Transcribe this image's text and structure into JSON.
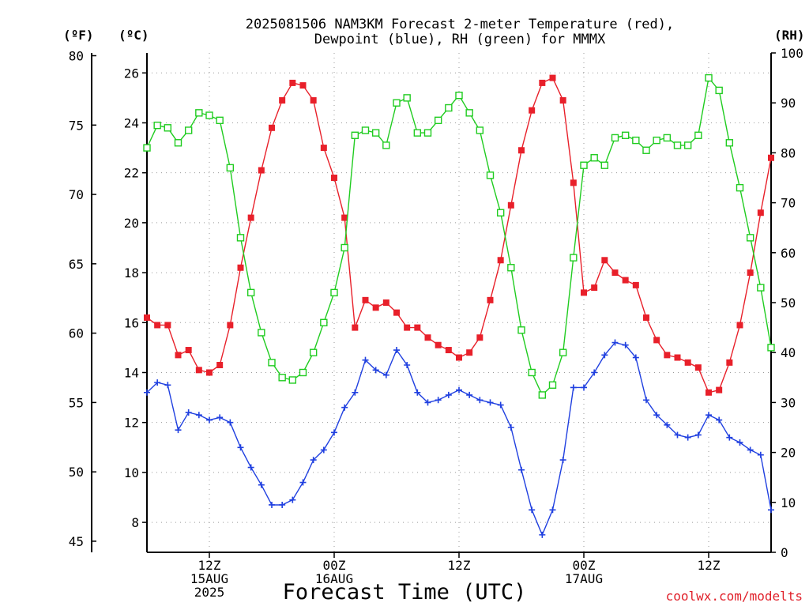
{
  "chart_data": {
    "type": "line",
    "title": [
      "2025081506 NAM3KM Forecast 2-meter Temperature (red),",
      "Dewpoint (blue), RH (green) for MMMX"
    ],
    "xlabel": "Forecast Time (UTC)",
    "credit": "coolwx.com/modelts",
    "units": {
      "fahrenheit": "(ºF)",
      "celsius": "(ºC)",
      "rh": "(RH)"
    },
    "x_range_hours": [
      0,
      60
    ],
    "x_ticks": [
      {
        "hour": 6,
        "labels": [
          "12Z",
          "15AUG",
          "2025"
        ]
      },
      {
        "hour": 18,
        "labels": [
          "00Z",
          "16AUG"
        ]
      },
      {
        "hour": 30,
        "labels": [
          "12Z"
        ]
      },
      {
        "hour": 42,
        "labels": [
          "00Z",
          "17AUG"
        ]
      },
      {
        "hour": 54,
        "labels": [
          "12Z"
        ]
      }
    ],
    "left_celsius_axis": {
      "range": [
        6.8,
        26.8
      ],
      "ticks": [
        8,
        10,
        12,
        14,
        16,
        18,
        20,
        22,
        24,
        26
      ]
    },
    "left_fahrenheit_axis": {
      "range": [
        44.2,
        80.2
      ],
      "ticks": [
        45,
        50,
        55,
        60,
        65,
        70,
        75,
        80
      ]
    },
    "right_rh_axis": {
      "range": [
        0,
        100
      ],
      "ticks": [
        0,
        10,
        20,
        30,
        40,
        50,
        60,
        70,
        80,
        90,
        100
      ]
    },
    "grid": true,
    "series": [
      {
        "name": "Temperature",
        "axis": "celsius",
        "color": "#e8202a",
        "marker": "filled-square",
        "x": [
          0,
          1,
          2,
          3,
          4,
          5,
          6,
          7,
          8,
          9,
          10,
          11,
          12,
          13,
          14,
          15,
          16,
          17,
          18,
          19,
          20,
          21,
          22,
          23,
          24,
          25,
          26,
          27,
          28,
          29,
          30,
          31,
          32,
          33,
          34,
          35,
          36,
          37,
          38,
          39,
          40,
          41,
          42,
          43,
          44,
          45,
          46,
          47,
          48,
          49,
          50,
          51,
          52,
          53,
          54,
          55,
          56,
          57,
          58,
          59,
          60
        ],
        "values": [
          16.2,
          15.9,
          15.9,
          14.7,
          14.9,
          14.1,
          14.0,
          14.3,
          15.9,
          18.2,
          20.2,
          22.1,
          23.8,
          24.9,
          25.6,
          25.5,
          24.9,
          23.0,
          21.8,
          20.2,
          15.8,
          16.9,
          16.6,
          16.8,
          16.4,
          15.8,
          15.8,
          15.4,
          15.1,
          14.9,
          14.6,
          14.8,
          15.4,
          16.9,
          18.5,
          20.7,
          22.9,
          24.5,
          25.6,
          25.8,
          24.9,
          21.6,
          17.2,
          17.4,
          18.5,
          18.0,
          17.7,
          17.5,
          16.2,
          15.3,
          14.7,
          14.6,
          14.4,
          14.2,
          13.2,
          13.3,
          14.4,
          15.9,
          18.0,
          20.4,
          22.6
        ]
      },
      {
        "name": "Dewpoint",
        "axis": "celsius",
        "color": "#2040e0",
        "marker": "plus",
        "x": [
          0,
          1,
          2,
          3,
          4,
          5,
          6,
          7,
          8,
          9,
          10,
          11,
          12,
          13,
          14,
          15,
          16,
          17,
          18,
          19,
          20,
          21,
          22,
          23,
          24,
          25,
          26,
          27,
          28,
          29,
          30,
          31,
          32,
          33,
          34,
          35,
          36,
          37,
          38,
          39,
          40,
          41,
          42,
          43,
          44,
          45,
          46,
          47,
          48,
          49,
          50,
          51,
          52,
          53,
          54,
          55,
          56,
          57,
          58,
          59,
          60
        ],
        "values": [
          13.2,
          13.6,
          13.5,
          11.7,
          12.4,
          12.3,
          12.1,
          12.2,
          12.0,
          11.0,
          10.2,
          9.5,
          8.7,
          8.7,
          8.9,
          9.6,
          10.5,
          10.9,
          11.6,
          12.6,
          13.2,
          14.5,
          14.1,
          13.9,
          14.9,
          14.3,
          13.2,
          12.8,
          12.9,
          13.1,
          13.3,
          13.1,
          12.9,
          12.8,
          12.7,
          11.8,
          10.1,
          8.5,
          7.5,
          8.5,
          10.5,
          13.4,
          13.4,
          14.0,
          14.7,
          15.2,
          15.1,
          14.6,
          12.9,
          12.3,
          11.9,
          11.5,
          11.4,
          11.5,
          12.3,
          12.1,
          11.4,
          11.2,
          10.9,
          10.7,
          8.5
        ]
      },
      {
        "name": "RH",
        "axis": "rh",
        "color": "#20cc20",
        "marker": "open-square",
        "x": [
          0,
          1,
          2,
          3,
          4,
          5,
          6,
          7,
          8,
          9,
          10,
          11,
          12,
          13,
          14,
          15,
          16,
          17,
          18,
          19,
          20,
          21,
          22,
          23,
          24,
          25,
          26,
          27,
          28,
          29,
          30,
          31,
          32,
          33,
          34,
          35,
          36,
          37,
          38,
          39,
          40,
          41,
          42,
          43,
          44,
          45,
          46,
          47,
          48,
          49,
          50,
          51,
          52,
          53,
          54,
          55,
          56,
          57,
          58,
          59,
          60
        ],
        "values": [
          81,
          85.5,
          85,
          82,
          84.5,
          88,
          87.5,
          86.5,
          77,
          63,
          52,
          44,
          38,
          35,
          34.5,
          36,
          40,
          46,
          52,
          61,
          83.5,
          84.5,
          84,
          81.5,
          90,
          91,
          84,
          84,
          86.5,
          89,
          91.5,
          88,
          84.5,
          75.5,
          68,
          57,
          44.5,
          36,
          31.5,
          33.5,
          40,
          59,
          77.5,
          79,
          77.5,
          83,
          83.5,
          82.5,
          80.5,
          82.5,
          83,
          81.5,
          81.5,
          83.5,
          95,
          92.5,
          82,
          73,
          63,
          53,
          41
        ]
      }
    ]
  }
}
